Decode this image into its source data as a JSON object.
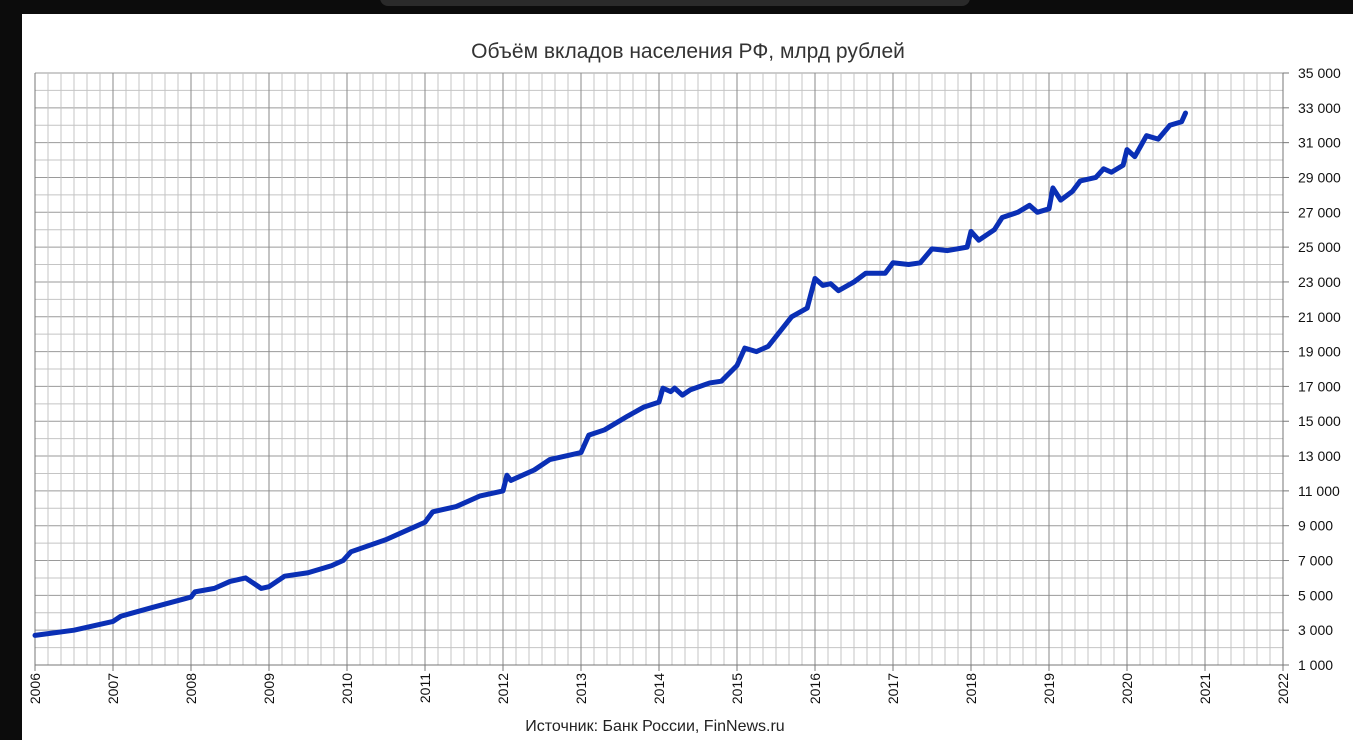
{
  "chart_data": {
    "type": "line",
    "title": "Объём вкладов населения РФ, млрд рублей",
    "source": "Источник: Банк России, FinNews.ru",
    "x": [
      2006.0,
      2006.5,
      2007.0,
      2007.1,
      2007.5,
      2008.0,
      2008.05,
      2008.3,
      2008.5,
      2008.7,
      2008.9,
      2009.0,
      2009.2,
      2009.5,
      2009.8,
      2009.95,
      2010.05,
      2010.5,
      2010.8,
      2011.0,
      2011.1,
      2011.4,
      2011.7,
      2012.0,
      2012.05,
      2012.1,
      2012.4,
      2012.6,
      2013.0,
      2013.1,
      2013.3,
      2013.6,
      2013.8,
      2014.0,
      2014.05,
      2014.15,
      2014.2,
      2014.3,
      2014.4,
      2014.65,
      2014.8,
      2015.0,
      2015.1,
      2015.25,
      2015.4,
      2015.7,
      2015.9,
      2016.0,
      2016.1,
      2016.2,
      2016.3,
      2016.5,
      2016.65,
      2016.9,
      2017.0,
      2017.2,
      2017.35,
      2017.5,
      2017.7,
      2017.95,
      2018.0,
      2018.1,
      2018.3,
      2018.4,
      2018.6,
      2018.75,
      2018.85,
      2019.0,
      2019.05,
      2019.15,
      2019.3,
      2019.4,
      2019.6,
      2019.7,
      2019.8,
      2019.95,
      2020.0,
      2020.1,
      2020.25,
      2020.4,
      2020.55,
      2020.7,
      2020.75
    ],
    "series": [
      {
        "color": "#0a2fb5",
        "values": [
          2700,
          3000,
          3500,
          3800,
          4300,
          4900,
          5200,
          5400,
          5800,
          6000,
          5400,
          5500,
          6100,
          6300,
          6700,
          7000,
          7500,
          8200,
          8800,
          9200,
          9800,
          10100,
          10700,
          11000,
          11900,
          11600,
          12200,
          12800,
          13200,
          14200,
          14500,
          15300,
          15800,
          16100,
          16900,
          16700,
          16900,
          16500,
          16800,
          17200,
          17300,
          18200,
          19200,
          19000,
          19300,
          21000,
          21500,
          23200,
          22800,
          22900,
          22500,
          23000,
          23500,
          23500,
          24100,
          24000,
          24100,
          24900,
          24800,
          25000,
          25900,
          25400,
          26000,
          26700,
          27000,
          27400,
          27000,
          27200,
          28400,
          27700,
          28200,
          28800,
          29000,
          29500,
          29300,
          29700,
          30600,
          30200,
          31400,
          31200,
          32000,
          32200,
          32700
        ]
      }
    ],
    "xlim": [
      2006,
      2022
    ],
    "xticks": [
      2006,
      2007,
      2008,
      2009,
      2010,
      2011,
      2012,
      2013,
      2014,
      2015,
      2016,
      2017,
      2018,
      2019,
      2020,
      2021,
      2022
    ],
    "ylim": [
      1000,
      35000
    ],
    "yticks": [
      {
        "value": 1000,
        "label": "1 000"
      },
      {
        "value": 3000,
        "label": "3 000"
      },
      {
        "value": 5000,
        "label": "5 000"
      },
      {
        "value": 7000,
        "label": "7 000"
      },
      {
        "value": 9000,
        "label": "9 000"
      },
      {
        "value": 11000,
        "label": "11 000"
      },
      {
        "value": 13000,
        "label": "13 000"
      },
      {
        "value": 15000,
        "label": "15 000"
      },
      {
        "value": 17000,
        "label": "17 000"
      },
      {
        "value": 19000,
        "label": "19 000"
      },
      {
        "value": 21000,
        "label": "21 000"
      },
      {
        "value": 23000,
        "label": "23 000"
      },
      {
        "value": 25000,
        "label": "25 000"
      },
      {
        "value": 27000,
        "label": "27 000"
      },
      {
        "value": 29000,
        "label": "29 000"
      },
      {
        "value": 31000,
        "label": "31 000"
      },
      {
        "value": 33000,
        "label": "33 000"
      },
      {
        "value": 35000,
        "label": "35 000"
      }
    ],
    "grid": true
  }
}
